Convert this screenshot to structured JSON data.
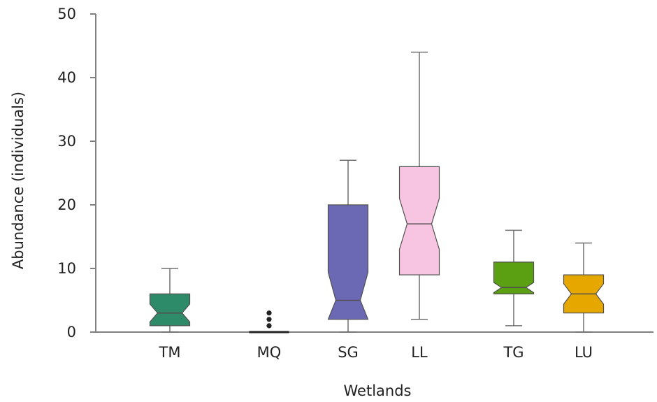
{
  "chart_data": {
    "type": "box",
    "title": "",
    "xlabel": "Wetlands",
    "ylabel": "Abundance (individuals)",
    "ylim": [
      0,
      50
    ],
    "yticks": [
      0,
      10,
      20,
      30,
      40,
      50
    ],
    "notched": true,
    "categories": [
      "TM",
      "MQ",
      "SG",
      "LL",
      "TG",
      "LU"
    ],
    "boxes": [
      {
        "category": "TM",
        "min": 0,
        "q1": 1,
        "median": 3,
        "q3": 6,
        "max": 10,
        "notch_low": 1.6,
        "notch_high": 4.4,
        "outliers": [],
        "color": "#2e8b69"
      },
      {
        "category": "MQ",
        "min": 0,
        "q1": 0,
        "median": 0,
        "q3": 0,
        "max": 0,
        "notch_low": 0,
        "notch_high": 0,
        "outliers": [
          1,
          2,
          3
        ],
        "color": "#2e8b69"
      },
      {
        "category": "SG",
        "min": 0,
        "q1": 2,
        "median": 5,
        "q3": 20,
        "max": 27,
        "notch_low": 0.6,
        "notch_high": 9.4,
        "outliers": [],
        "color": "#6b68b4"
      },
      {
        "category": "LL",
        "min": 2,
        "q1": 9,
        "median": 17,
        "q3": 26,
        "max": 44,
        "notch_low": 13,
        "notch_high": 21,
        "outliers": [],
        "color": "#f7c5e2"
      },
      {
        "category": "TG",
        "min": 1,
        "q1": 6,
        "median": 7,
        "q3": 11,
        "max": 16,
        "notch_low": 6.2,
        "notch_high": 7.8,
        "outliers": [],
        "color": "#5aa012"
      },
      {
        "category": "LU",
        "min": 0,
        "q1": 3,
        "median": 6,
        "q3": 9,
        "max": 14,
        "notch_low": 4.4,
        "notch_high": 7.6,
        "outliers": [],
        "color": "#e6a800"
      }
    ],
    "colors": {
      "axis": "#808080",
      "whisker": "#707070",
      "outline": "#505050",
      "text": "#222222"
    }
  }
}
